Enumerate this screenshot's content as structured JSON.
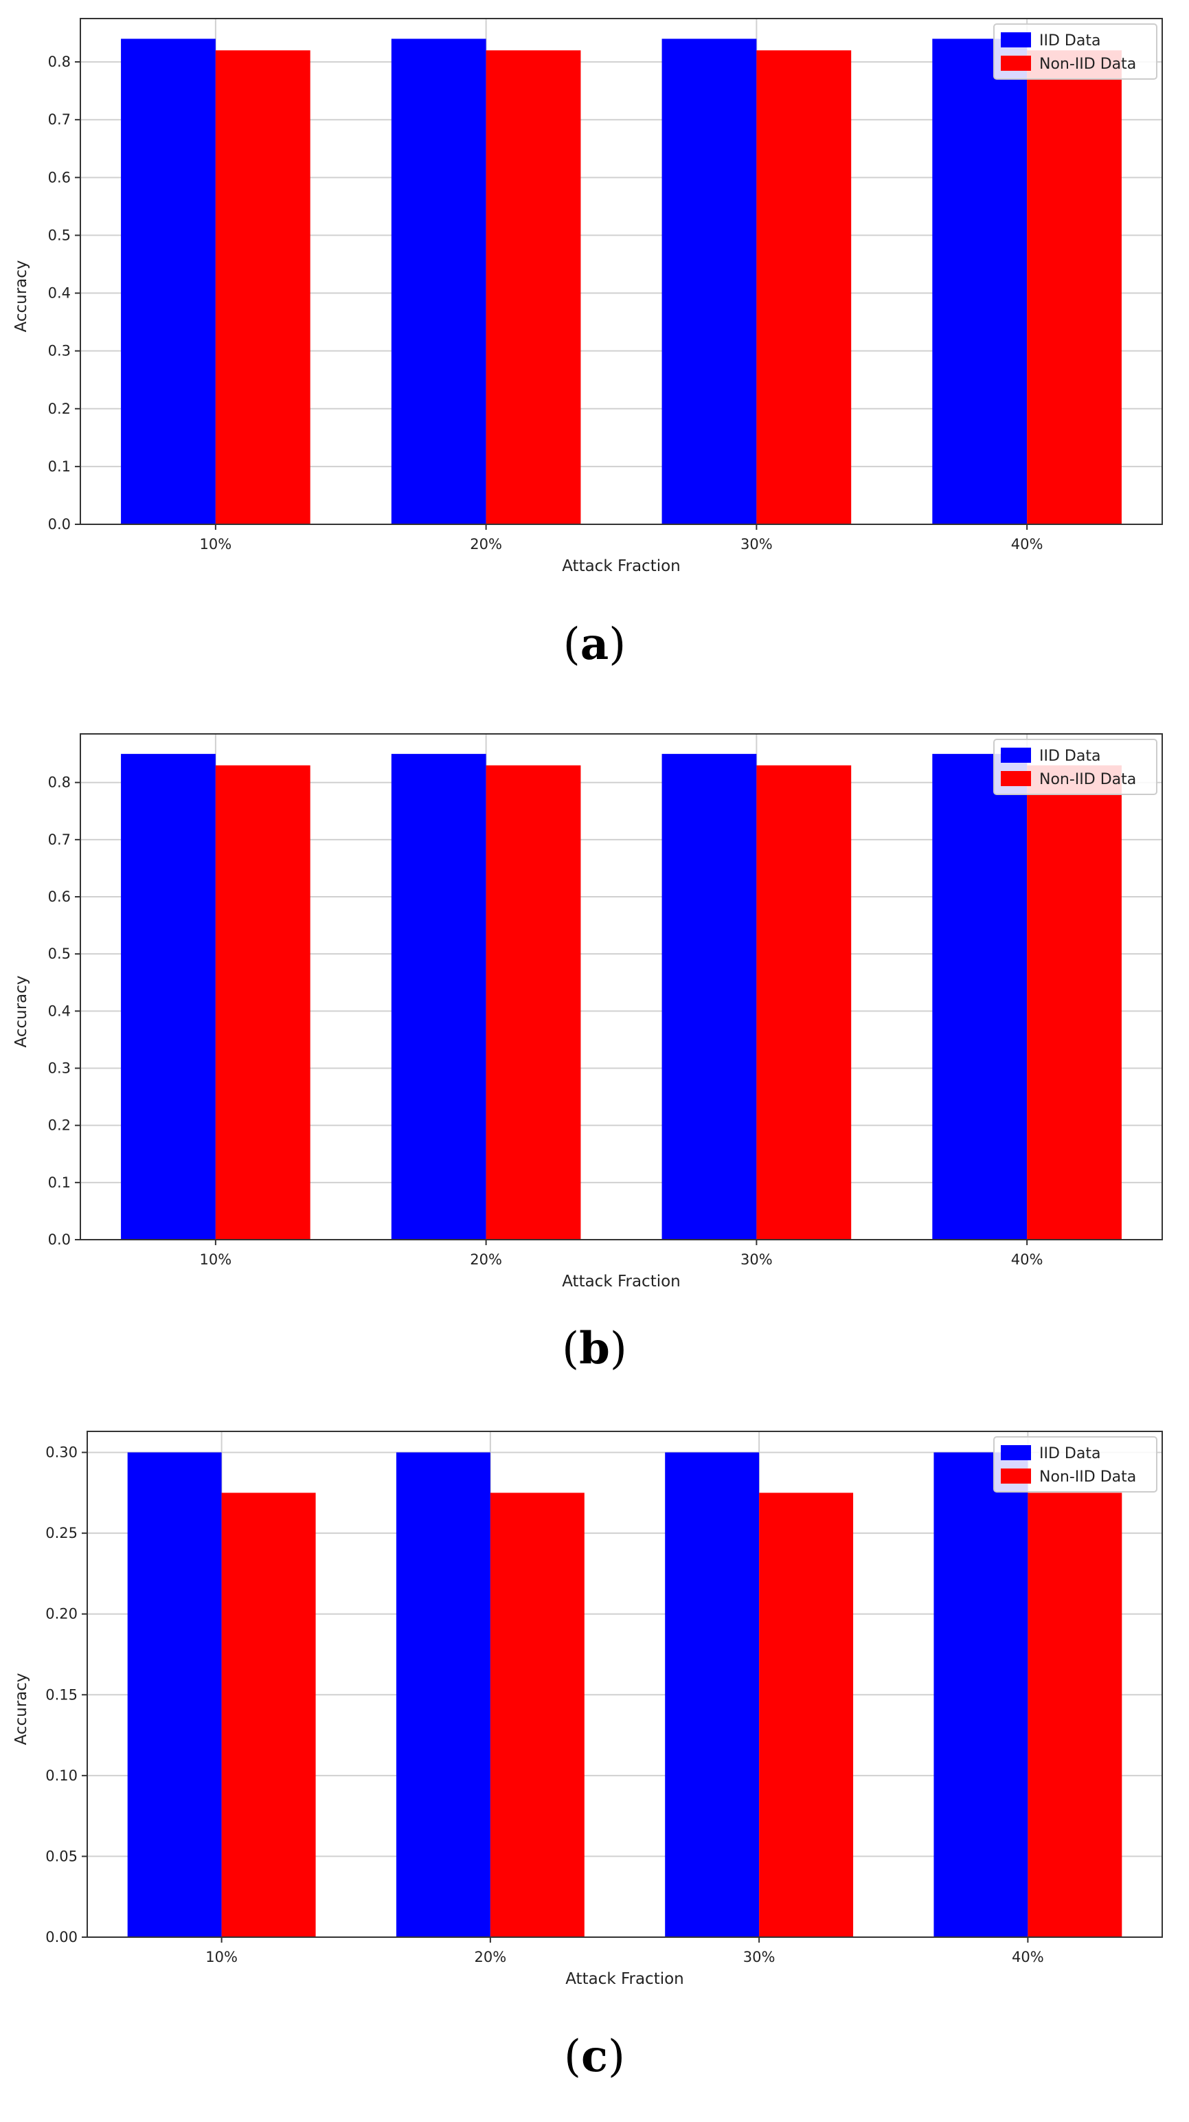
{
  "chart_data": [
    {
      "type": "bar",
      "panel": "a",
      "caption": "a",
      "categories": [
        "10%",
        "20%",
        "30%",
        "40%"
      ],
      "series": [
        {
          "name": "IID Data",
          "color": "#0000ff",
          "values": [
            0.84,
            0.84,
            0.84,
            0.84
          ]
        },
        {
          "name": "Non-IID Data",
          "color": "#ff0000",
          "values": [
            0.82,
            0.82,
            0.82,
            0.82
          ]
        }
      ],
      "xlabel": "Attack Fraction",
      "ylabel": "Accuracy",
      "ylim": [
        0,
        0.875
      ],
      "yticks": [
        0.0,
        0.1,
        0.2,
        0.3,
        0.4,
        0.5,
        0.6,
        0.7,
        0.8
      ],
      "ytick_labels": [
        "0.0",
        "0.1",
        "0.2",
        "0.3",
        "0.4",
        "0.5",
        "0.6",
        "0.7",
        "0.8"
      ],
      "grid": true,
      "legend": "top-right"
    },
    {
      "type": "bar",
      "panel": "b",
      "caption": "b",
      "categories": [
        "10%",
        "20%",
        "30%",
        "40%"
      ],
      "series": [
        {
          "name": "IID Data",
          "color": "#0000ff",
          "values": [
            0.85,
            0.85,
            0.85,
            0.85
          ]
        },
        {
          "name": "Non-IID Data",
          "color": "#ff0000",
          "values": [
            0.83,
            0.83,
            0.83,
            0.83
          ]
        }
      ],
      "xlabel": "Attack Fraction",
      "ylabel": "Accuracy",
      "ylim": [
        0,
        0.885
      ],
      "yticks": [
        0.0,
        0.1,
        0.2,
        0.3,
        0.4,
        0.5,
        0.6,
        0.7,
        0.8
      ],
      "ytick_labels": [
        "0.0",
        "0.1",
        "0.2",
        "0.3",
        "0.4",
        "0.5",
        "0.6",
        "0.7",
        "0.8"
      ],
      "grid": true,
      "legend": "top-right"
    },
    {
      "type": "bar",
      "panel": "c",
      "caption": "c",
      "categories": [
        "10%",
        "20%",
        "30%",
        "40%"
      ],
      "series": [
        {
          "name": "IID Data",
          "color": "#0000ff",
          "values": [
            0.3,
            0.3,
            0.3,
            0.3
          ]
        },
        {
          "name": "Non-IID Data",
          "color": "#ff0000",
          "values": [
            0.275,
            0.275,
            0.275,
            0.275
          ]
        }
      ],
      "xlabel": "Attack Fraction",
      "ylabel": "Accuracy",
      "ylim": [
        0,
        0.313
      ],
      "yticks": [
        0.0,
        0.05,
        0.1,
        0.15,
        0.2,
        0.25,
        0.3
      ],
      "ytick_labels": [
        "0.00",
        "0.05",
        "0.10",
        "0.15",
        "0.20",
        "0.25",
        "0.30"
      ],
      "grid": true,
      "legend": "top-right"
    }
  ]
}
